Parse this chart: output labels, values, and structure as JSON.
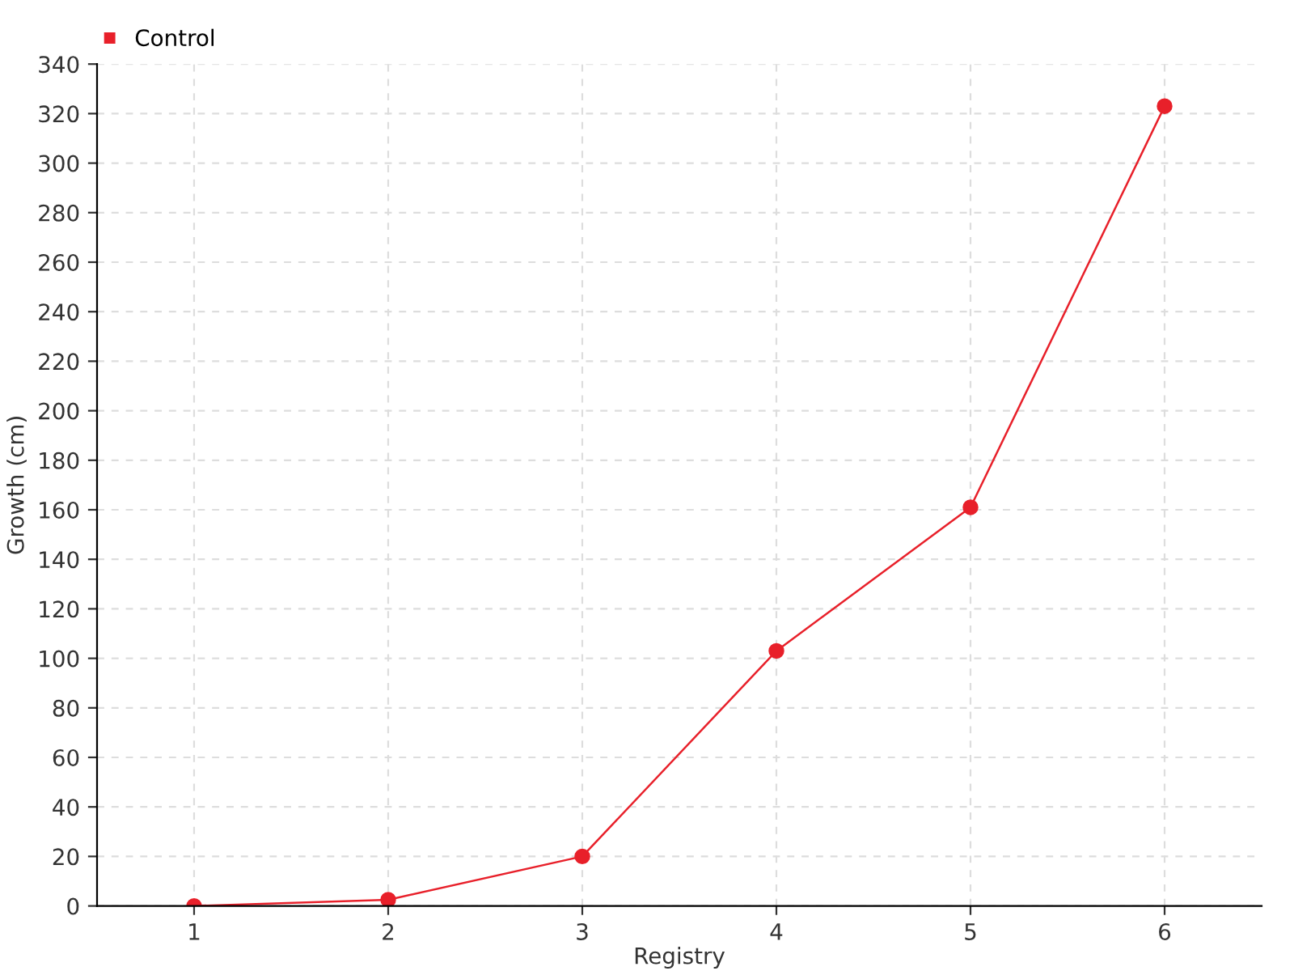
{
  "chart_data": {
    "type": "line",
    "xlabel": "Registry",
    "ylabel": "Growth (cm)",
    "x": [
      1,
      2,
      3,
      4,
      5,
      6
    ],
    "series": [
      {
        "name": "Control",
        "color": "#e8202a",
        "values": [
          0,
          2.5,
          20,
          103,
          161,
          323
        ]
      }
    ],
    "xlim": [
      0.5,
      6.5
    ],
    "xticks": [
      1,
      2,
      3,
      4,
      5,
      6
    ],
    "ylim": [
      0,
      340
    ],
    "yticks": [
      0,
      20,
      40,
      60,
      80,
      100,
      120,
      140,
      160,
      180,
      200,
      220,
      240,
      260,
      280,
      300,
      320,
      340
    ],
    "grid": true,
    "legend": "top left",
    "marker": "circle",
    "line_style": "solid"
  }
}
